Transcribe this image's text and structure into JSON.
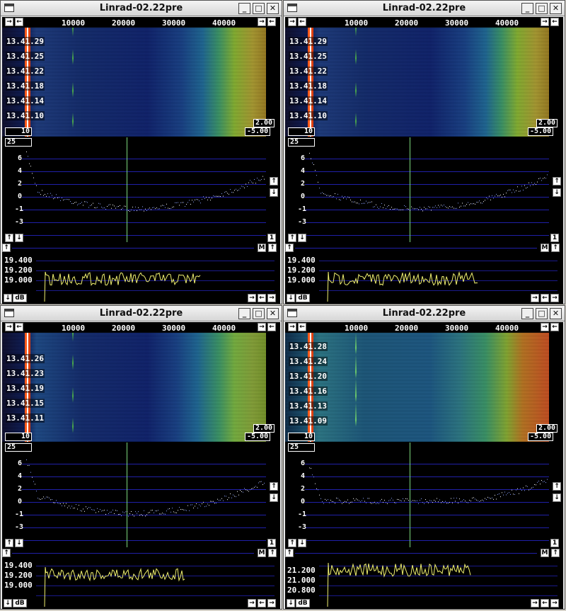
{
  "windows": [
    {
      "id": "w1",
      "title": "Linrad-02.22pre",
      "freq_labels": [
        "10000",
        "20000",
        "30000",
        "40000"
      ],
      "time_labels": [
        "13.41.29",
        "13.41.25",
        "13.41.22",
        "13.41.18",
        "13.41.14",
        "13.41.10"
      ],
      "wf_avg": "10",
      "wf_gain": "2.00",
      "wf_zero": "-5.00",
      "spec_avg": "25",
      "y_labels": [
        "6",
        "4",
        "2",
        "0",
        "-1",
        "-3"
      ],
      "spec_scale": "1",
      "m_label": "M",
      "bottom_labels": [
        "19.400",
        "19.200",
        "19.000"
      ],
      "db_label": "dB"
    },
    {
      "id": "w2",
      "title": "Linrad-02.22pre",
      "freq_labels": [
        "10000",
        "20000",
        "30000",
        "40000"
      ],
      "time_labels": [
        "13.41.29",
        "13.41.25",
        "13.41.22",
        "13.41.18",
        "13.41.14",
        "13.41.10"
      ],
      "wf_avg": "10",
      "wf_gain": "2.00",
      "wf_zero": "-5.00",
      "spec_avg": "25",
      "y_labels": [
        "6",
        "4",
        "2",
        "0",
        "-1",
        "-3"
      ],
      "spec_scale": "1",
      "m_label": "M",
      "bottom_labels": [
        "19.400",
        "19.200",
        "19.000"
      ],
      "db_label": "dB"
    },
    {
      "id": "w3",
      "title": "Linrad-02.22pre",
      "freq_labels": [
        "10000",
        "20000",
        "30000",
        "40000"
      ],
      "time_labels": [
        "13.41.26",
        "13.41.23",
        "13.41.19",
        "13.41.15",
        "13.41.11"
      ],
      "wf_avg": "10",
      "wf_gain": "2.00",
      "wf_zero": "-5.00",
      "spec_avg": "25",
      "y_labels": [
        "6",
        "4",
        "2",
        "0",
        "-1",
        "-3"
      ],
      "spec_scale": "1",
      "m_label": "M",
      "bottom_labels": [
        "19.400",
        "19.200",
        "19.000"
      ],
      "db_label": "dB"
    },
    {
      "id": "w4",
      "title": "Linrad-02.22pre",
      "freq_labels": [
        "10000",
        "20000",
        "30000",
        "40000"
      ],
      "time_labels": [
        "13.41.28",
        "13.41.24",
        "13.41.20",
        "13.41.16",
        "13.41.13",
        "13.41.09"
      ],
      "wf_avg": "10",
      "wf_gain": "2.00",
      "wf_zero": "-5.00",
      "spec_avg": "25",
      "y_labels": [
        "6",
        "4",
        "2",
        "0",
        "-1",
        "-3"
      ],
      "spec_scale": "1",
      "m_label": "M",
      "bottom_labels": [
        "21.200",
        "21.000",
        "20.800"
      ],
      "db_label": "dB"
    }
  ],
  "title_buttons": {
    "minimize": "_",
    "maximize": "□",
    "close": "✕"
  },
  "arrows": {
    "right": "→",
    "left": "←",
    "up": "↑",
    "down": "↓"
  }
}
